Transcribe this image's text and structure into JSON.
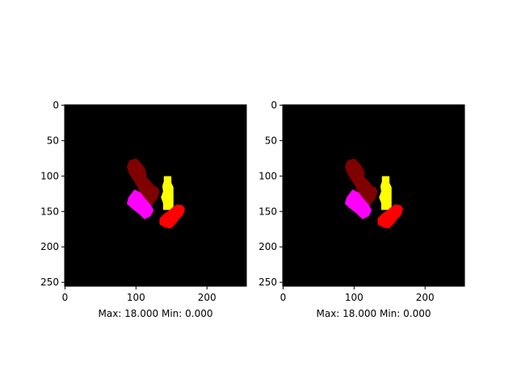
{
  "chart_data": [
    {
      "type": "heatmap",
      "xlabel": "Max: 18.000 Min: 0.000",
      "ylabel": "",
      "title": "",
      "xlim": [
        0,
        255
      ],
      "ylim": [
        255,
        0
      ],
      "xticks": [
        0,
        100,
        200
      ],
      "yticks": [
        0,
        50,
        100,
        150,
        200,
        250
      ],
      "background": "#000000",
      "value_range": {
        "max": 18.0,
        "min": 0.0
      },
      "regions": [
        {
          "color": "#800000",
          "points": [
            [
              91,
              79
            ],
            [
              100,
              76
            ],
            [
              108,
              84
            ],
            [
              113,
              92
            ],
            [
              114,
              102
            ],
            [
              120,
              108
            ],
            [
              124,
              114
            ],
            [
              130,
              117
            ],
            [
              132,
              122
            ],
            [
              129,
              132
            ],
            [
              122,
              140
            ],
            [
              115,
              138
            ],
            [
              112,
              130
            ],
            [
              106,
              122
            ],
            [
              102,
              113
            ],
            [
              96,
              104
            ],
            [
              91,
              96
            ],
            [
              88,
              87
            ]
          ]
        },
        {
          "color": "#ffff00",
          "points": [
            [
              140,
              101
            ],
            [
              149,
              101
            ],
            [
              149,
              110
            ],
            [
              152,
              116
            ],
            [
              152,
              143
            ],
            [
              148,
              147
            ],
            [
              139,
              147
            ],
            [
              139,
              138
            ],
            [
              136,
              130
            ],
            [
              139,
              122
            ],
            [
              138,
              114
            ],
            [
              140,
              108
            ]
          ]
        },
        {
          "color": "#ff00ff",
          "points": [
            [
              98,
              120
            ],
            [
              106,
              124
            ],
            [
              112,
              132
            ],
            [
              120,
              141
            ],
            [
              124,
              148
            ],
            [
              120,
              156
            ],
            [
              112,
              160
            ],
            [
              105,
              153
            ],
            [
              96,
              146
            ],
            [
              88,
              139
            ],
            [
              90,
              131
            ]
          ]
        },
        {
          "color": "#ff0000",
          "points": [
            [
              152,
              145
            ],
            [
              158,
              141
            ],
            [
              165,
              142
            ],
            [
              168,
              146
            ],
            [
              166,
              154
            ],
            [
              160,
              160
            ],
            [
              156,
              166
            ],
            [
              149,
              173
            ],
            [
              142,
              172
            ],
            [
              134,
              168
            ],
            [
              134,
              160
            ],
            [
              140,
              154
            ],
            [
              146,
              150
            ]
          ]
        }
      ]
    },
    {
      "type": "heatmap",
      "xlabel": "Max: 18.000 Min: 0.000",
      "ylabel": "",
      "title": "",
      "xlim": [
        0,
        255
      ],
      "ylim": [
        255,
        0
      ],
      "xticks": [
        0,
        100,
        200
      ],
      "yticks": [
        0,
        50,
        100,
        150,
        200,
        250
      ],
      "background": "#000000",
      "value_range": {
        "max": 18.0,
        "min": 0.0
      },
      "regions": [
        {
          "color": "#800000",
          "points": [
            [
              91,
              79
            ],
            [
              100,
              76
            ],
            [
              108,
              84
            ],
            [
              113,
              92
            ],
            [
              114,
              102
            ],
            [
              120,
              108
            ],
            [
              124,
              114
            ],
            [
              130,
              117
            ],
            [
              132,
              122
            ],
            [
              129,
              132
            ],
            [
              122,
              140
            ],
            [
              115,
              138
            ],
            [
              112,
              130
            ],
            [
              106,
              122
            ],
            [
              102,
              113
            ],
            [
              96,
              104
            ],
            [
              91,
              96
            ],
            [
              88,
              87
            ]
          ]
        },
        {
          "color": "#ffff00",
          "points": [
            [
              140,
              101
            ],
            [
              149,
              101
            ],
            [
              149,
              110
            ],
            [
              152,
              116
            ],
            [
              152,
              143
            ],
            [
              148,
              147
            ],
            [
              139,
              147
            ],
            [
              139,
              138
            ],
            [
              136,
              130
            ],
            [
              139,
              122
            ],
            [
              138,
              114
            ],
            [
              140,
              108
            ]
          ]
        },
        {
          "color": "#ff00ff",
          "points": [
            [
              98,
              120
            ],
            [
              106,
              124
            ],
            [
              112,
              132
            ],
            [
              120,
              141
            ],
            [
              124,
              148
            ],
            [
              120,
              156
            ],
            [
              112,
              160
            ],
            [
              105,
              153
            ],
            [
              96,
              146
            ],
            [
              88,
              139
            ],
            [
              90,
              131
            ]
          ]
        },
        {
          "color": "#ff0000",
          "points": [
            [
              152,
              145
            ],
            [
              158,
              141
            ],
            [
              165,
              142
            ],
            [
              168,
              146
            ],
            [
              166,
              154
            ],
            [
              160,
              160
            ],
            [
              156,
              166
            ],
            [
              149,
              173
            ],
            [
              142,
              172
            ],
            [
              134,
              168
            ],
            [
              134,
              160
            ],
            [
              140,
              154
            ],
            [
              146,
              150
            ]
          ]
        }
      ]
    }
  ]
}
